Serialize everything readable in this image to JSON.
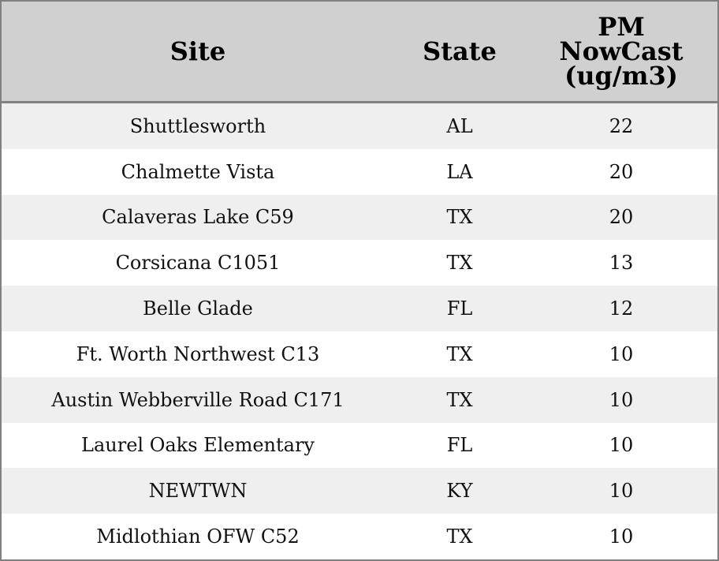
{
  "table": {
    "header": [
      "Site",
      "State",
      "PM NowCast (ug/m3)"
    ],
    "rows": [
      [
        "Shuttlesworth",
        "AL",
        22
      ],
      [
        "Chalmette Vista",
        "LA",
        20
      ],
      [
        "Calaveras Lake C59",
        "TX",
        20
      ],
      [
        "Corsicana C1051",
        "TX",
        13
      ],
      [
        "Belle Glade",
        "FL",
        12
      ],
      [
        "Ft. Worth Northwest C13",
        "TX",
        10
      ],
      [
        "Austin Webberville Road C171",
        "TX",
        10
      ],
      [
        "Laurel Oaks Elementary",
        "FL",
        10
      ],
      [
        "NEWTWN",
        "KY",
        10
      ],
      [
        "Midlothian OFW C52",
        "TX",
        10
      ]
    ]
  }
}
